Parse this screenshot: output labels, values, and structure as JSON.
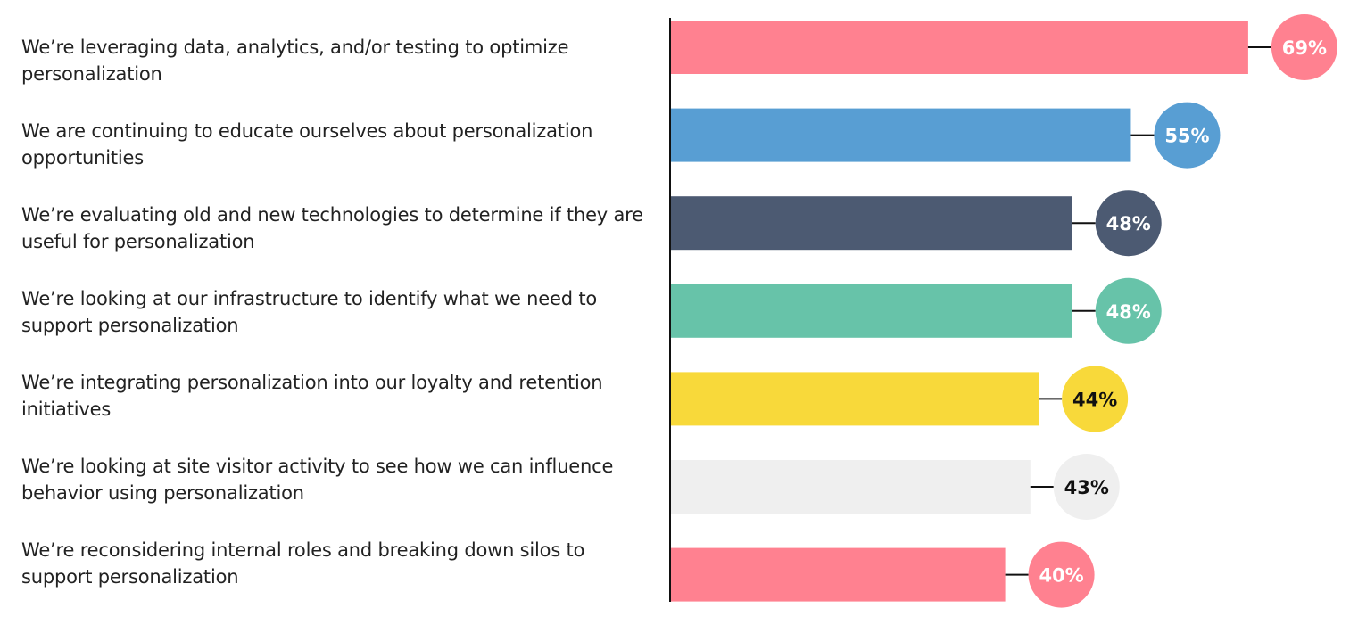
{
  "chart_data": {
    "type": "bar",
    "orientation": "horizontal",
    "categories": [
      "We’re leveraging data, analytics, and/or testing to optimize personalization",
      "We are continuing to educate ourselves about personalization opportunities",
      "We’re evaluating old and new technologies to determine if they are useful for personalization",
      "We’re looking at our infrastructure to identify what we need to support personalization",
      "We’re integrating personalization into our loyalty and retention initiatives",
      "We’re looking at site visitor activity to see how we can influence behavior using personalization",
      "We’re reconsidering internal roles and breaking down silos to support personalization"
    ],
    "category_lines": [
      [
        "We’re leveraging data, analytics, and/or testing to optimize",
        "personalization"
      ],
      [
        "We are continuing to educate ourselves about personalization",
        "opportunities"
      ],
      [
        "We’re evaluating old and new technologies to determine if they are",
        "useful for personalization"
      ],
      [
        "We’re looking at our infrastructure to identify what we need to",
        "support personalization"
      ],
      [
        "We’re integrating personalization into our loyalty and retention",
        "initiatives"
      ],
      [
        "We’re looking at site visitor activity to see how we can influence",
        "behavior using personalization"
      ],
      [
        "We’re reconsidering internal roles and breaking down silos to",
        "support personalization"
      ]
    ],
    "values": [
      69,
      55,
      48,
      48,
      44,
      43,
      40
    ],
    "value_labels": [
      "69%",
      "55%",
      "48%",
      "48%",
      "44%",
      "43%",
      "40%"
    ],
    "colors": [
      "#ff8190",
      "#589ed3",
      "#4c5a72",
      "#67c3a9",
      "#f8d93a",
      "#efefef",
      "#ff8190"
    ],
    "label_text_colors": [
      "#ffffff",
      "#ffffff",
      "#ffffff",
      "#ffffff",
      "#111111",
      "#111111",
      "#ffffff"
    ],
    "xlim": [
      0,
      100
    ],
    "grid": false,
    "legend": "none",
    "title": "",
    "xlabel": "",
    "ylabel": ""
  }
}
